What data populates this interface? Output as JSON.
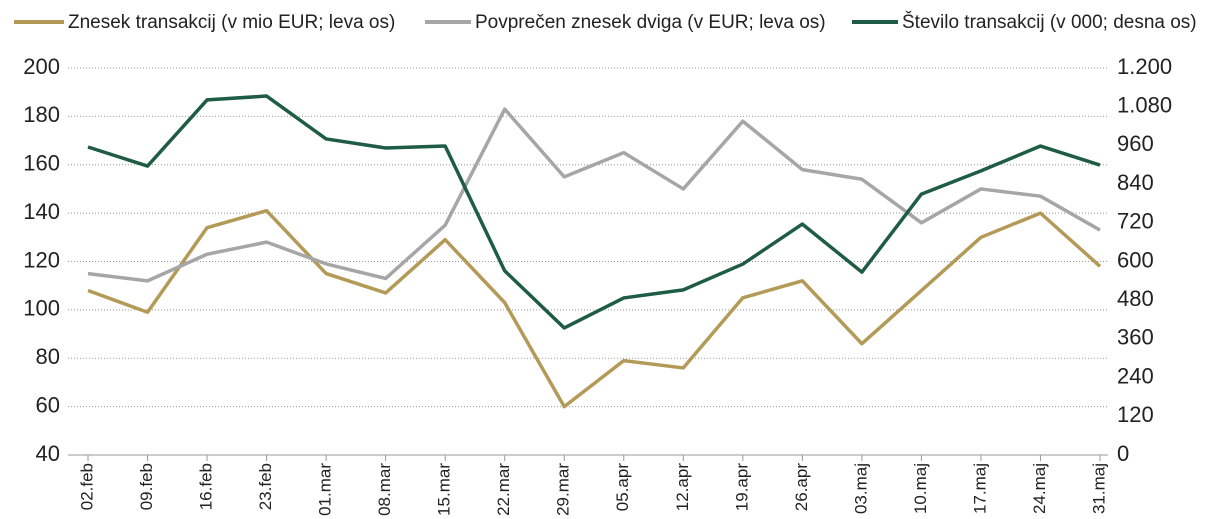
{
  "chart_data": {
    "type": "line",
    "categories": [
      "02.feb",
      "09.feb",
      "16.feb",
      "23.feb",
      "01.mar",
      "08.mar",
      "15.mar",
      "22.mar",
      "29.mar",
      "05.apr",
      "12.apr",
      "19.apr",
      "26.apr",
      "03.maj",
      "10.maj",
      "17.maj",
      "24.maj",
      "31.maj"
    ],
    "series": [
      {
        "name": "Znesek transakcij (v mio EUR; leva os)",
        "color": "#b39a56",
        "values": [
          108,
          99,
          134,
          141,
          115,
          107,
          129,
          103,
          60,
          79,
          76,
          105,
          112,
          86,
          108,
          130,
          140,
          118
        ]
      },
      {
        "name": "Povprečen znesek dviga (v EUR; leva os)",
        "color": "#a6a6a6",
        "values": [
          115,
          112,
          123,
          128,
          119,
          113,
          135,
          183,
          155,
          165,
          150,
          178,
          158,
          154,
          136,
          150,
          147,
          133
        ]
      },
      {
        "name": "Število transakcij (v 000; desna os)",
        "color": "#1f5c45",
        "axis": "y2",
        "values": [
          955,
          896,
          1101,
          1113,
          980,
          952,
          958,
          571,
          394,
          487,
          512,
          592,
          716,
          567,
          809,
          881,
          958,
          899
        ]
      }
    ],
    "ylim": [
      40,
      200
    ],
    "yticks": [
      40,
      60,
      80,
      100,
      120,
      140,
      160,
      180,
      200
    ],
    "y2lim": [
      0,
      1200
    ],
    "y2ticks": [
      0,
      120,
      240,
      360,
      480,
      600,
      720,
      840,
      960,
      {
        "value": 1080,
        "label": "1.080"
      },
      {
        "value": 1200,
        "label": "1.200"
      }
    ],
    "grid": true
  }
}
